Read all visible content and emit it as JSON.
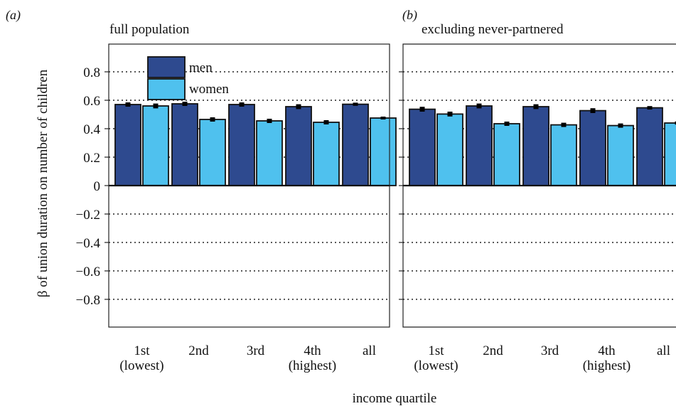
{
  "chart_data": {
    "type": "bar",
    "y_axis_label": "β of union duration on number of children",
    "x_axis_label": "income quartile",
    "categories": [
      [
        "1st",
        "(lowest)"
      ],
      [
        "2nd"
      ],
      [
        "3rd"
      ],
      [
        "4th",
        "(highest)"
      ],
      [
        "all"
      ]
    ],
    "ylim": [
      -1.0,
      1.0
    ],
    "yticks": [
      0.8,
      0.6,
      0.4,
      0.2,
      0,
      -0.2,
      -0.4,
      -0.6,
      -0.8
    ],
    "ytick_labels": [
      "0.8",
      "0.6",
      "0.4",
      "0.2",
      "0",
      "−0.2",
      "−0.4",
      "−0.6",
      "−0.8"
    ],
    "grid": true,
    "legend_position": "top-left",
    "colors": {
      "men": "#2e4a8f",
      "women": "#4fc1ee"
    },
    "legend": [
      {
        "key": "men",
        "label": "men"
      },
      {
        "key": "women",
        "label": "women"
      }
    ],
    "panels": [
      {
        "tag": "(a)",
        "title": "full population",
        "series": [
          {
            "key": "men",
            "name": "men",
            "values": [
              0.57,
              0.575,
              0.57,
              0.555,
              0.572
            ],
            "errors": [
              0.01,
              0.01,
              0.01,
              0.012,
              0.006
            ]
          },
          {
            "key": "women",
            "name": "women",
            "values": [
              0.56,
              0.465,
              0.455,
              0.445,
              0.475
            ],
            "errors": [
              0.012,
              0.01,
              0.01,
              0.01,
              0.005
            ]
          }
        ]
      },
      {
        "tag": "(b)",
        "title": "excluding never-partnered",
        "series": [
          {
            "key": "men",
            "name": "men",
            "values": [
              0.537,
              0.56,
              0.555,
              0.527,
              0.547
            ],
            "errors": [
              0.012,
              0.012,
              0.012,
              0.012,
              0.007
            ]
          },
          {
            "key": "women",
            "name": "women",
            "values": [
              0.503,
              0.435,
              0.427,
              0.422,
              0.44
            ],
            "errors": [
              0.012,
              0.01,
              0.01,
              0.01,
              0.006
            ]
          }
        ]
      }
    ]
  }
}
